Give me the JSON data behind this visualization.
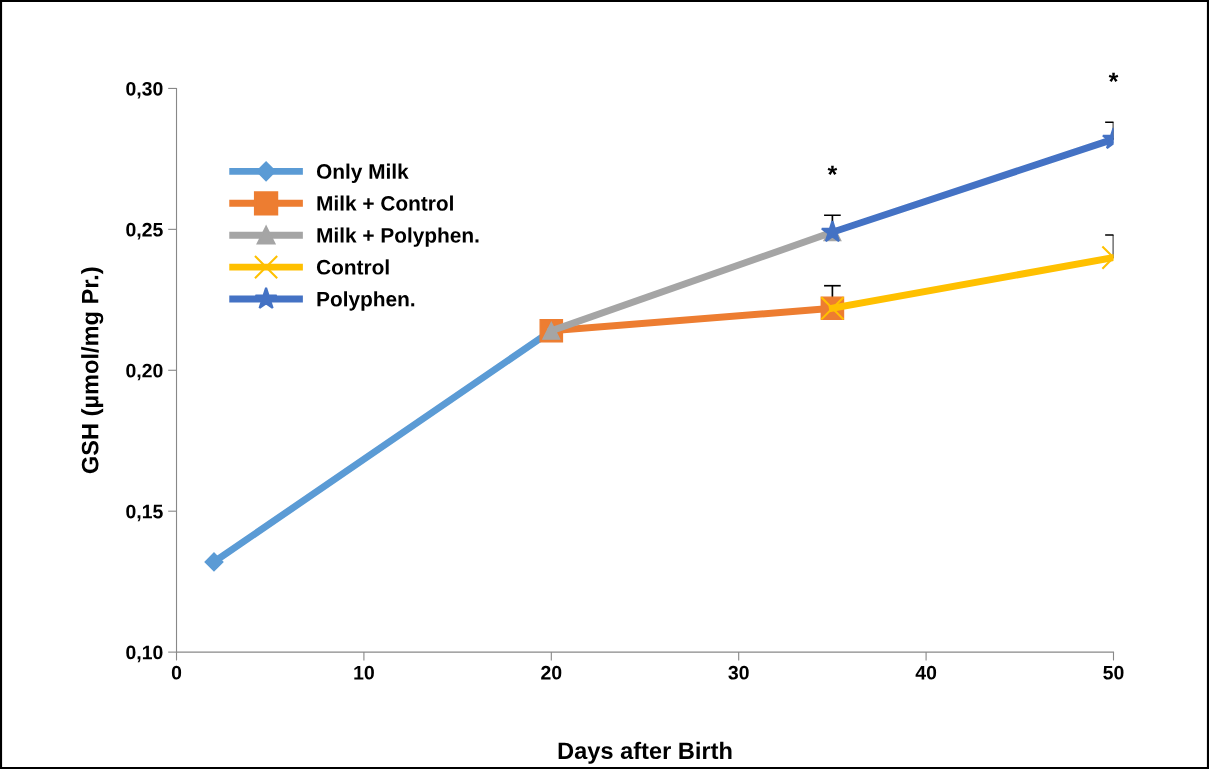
{
  "chart_data": {
    "type": "line",
    "xlabel": "Days after Birth",
    "ylabel": "GSH (µmol/mg Pr.)",
    "xlim": [
      0,
      50
    ],
    "xticks": [
      0,
      10,
      20,
      30,
      40,
      50
    ],
    "ylim": [
      0.1,
      0.3
    ],
    "yticks": [
      {
        "value": 0.1,
        "label": "0,10"
      },
      {
        "value": 0.15,
        "label": "0,15"
      },
      {
        "value": 0.2,
        "label": "0,20"
      },
      {
        "value": 0.25,
        "label": "0,25"
      },
      {
        "value": 0.3,
        "label": "0,30"
      }
    ],
    "grid": false,
    "legend": "top left",
    "series": [
      {
        "name": "Only Milk",
        "color": "#5b9bd5",
        "marker": "diamond",
        "x": [
          2,
          20
        ],
        "values": [
          0.132,
          0.214
        ]
      },
      {
        "name": "Milk + Control",
        "color": "#ed7d31",
        "marker": "square",
        "x": [
          20,
          35
        ],
        "values": [
          0.214,
          0.222
        ],
        "errors": [
          null,
          [
            0.222,
            0.23
          ]
        ]
      },
      {
        "name": "Milk + Polyphen.",
        "color": "#a5a5a5",
        "marker": "triangle",
        "x": [
          20,
          35
        ],
        "values": [
          0.214,
          0.249
        ],
        "errors": [
          null,
          [
            0.249,
            0.255
          ]
        ],
        "value_labels": [
          null,
          "*"
        ]
      },
      {
        "name": "Control",
        "color": "#ffc000",
        "marker": "cross",
        "x": [
          35,
          50
        ],
        "values": [
          0.222,
          0.24
        ],
        "errors": [
          null,
          [
            0.24,
            0.248
          ]
        ]
      },
      {
        "name": "Polyphen.",
        "color": "#4472c4",
        "marker": "star",
        "x": [
          35,
          50
        ],
        "values": [
          0.249,
          0.282
        ],
        "errors": [
          null,
          [
            0.282,
            0.288
          ]
        ],
        "value_labels": [
          null,
          "*"
        ]
      }
    ]
  }
}
